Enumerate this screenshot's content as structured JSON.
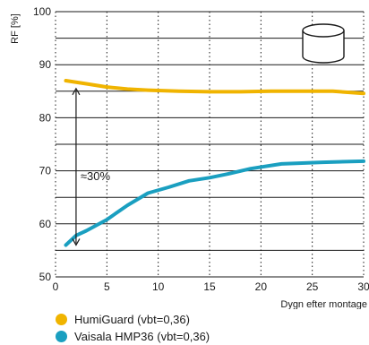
{
  "chart_data": {
    "type": "line",
    "title": "",
    "xlabel": "Dygn efter montage",
    "ylabel": "RF [%]",
    "xlim": [
      0,
      30
    ],
    "ylim": [
      50,
      100
    ],
    "xticks": [
      0,
      5,
      10,
      15,
      20,
      25,
      30
    ],
    "yticks": [
      50,
      60,
      70,
      80,
      90,
      100
    ],
    "grid": {
      "horizontal": "solid, every 5",
      "vertical": "dotted, every 5"
    },
    "legend_position": "bottom-left",
    "annotation": {
      "text": "≈30%",
      "from_y": 56,
      "to_y": 85.5,
      "at_x": 2
    },
    "series": [
      {
        "name": "HumiGuard (vbt=0,36)",
        "color": "#f0b400",
        "x": [
          1,
          3,
          5,
          7,
          9,
          12,
          15,
          18,
          21,
          24,
          27,
          30
        ],
        "y": [
          87.0,
          86.4,
          85.8,
          85.4,
          85.2,
          85.0,
          84.9,
          84.9,
          85.0,
          85.0,
          85.0,
          84.6
        ]
      },
      {
        "name": "Vaisala HMP36 (vbt=0,36)",
        "color": "#1a9fc0",
        "x": [
          1,
          2,
          3,
          5,
          7,
          9,
          11,
          13,
          15,
          17,
          19,
          22,
          26,
          30
        ],
        "y": [
          56.0,
          57.8,
          58.7,
          60.8,
          63.5,
          65.8,
          66.9,
          68.1,
          68.7,
          69.5,
          70.4,
          71.3,
          71.6,
          71.8
        ]
      }
    ]
  }
}
